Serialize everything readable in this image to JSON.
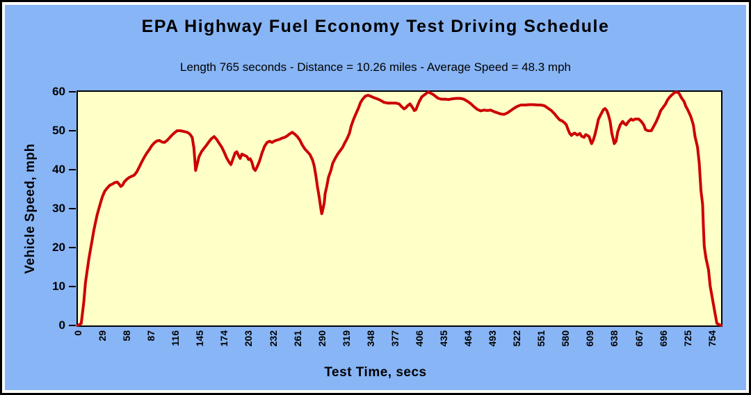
{
  "title": "EPA Highway Fuel Economy Test Driving Schedule",
  "subtitle": "Length 765 seconds - Distance = 10.26 miles - Average Speed = 48.3 mph",
  "colors": {
    "panel_background": "#88b5f5",
    "plot_background": "#ffffc8",
    "line": "#cc0000",
    "text": "#000000",
    "border": "#000000"
  },
  "chart_data": {
    "type": "line",
    "title": "EPA Highway Fuel Economy Test Driving Schedule",
    "subtitle": "Length 765 seconds - Distance = 10.26 miles - Average Speed = 48.3 mph",
    "xlabel": "Test Time, secs",
    "ylabel": "Vehicle Speed, mph",
    "xlim": [
      0,
      765
    ],
    "ylim": [
      0,
      60
    ],
    "grid": false,
    "legend": false,
    "x_ticks": [
      0,
      29,
      58,
      87,
      116,
      145,
      174,
      203,
      232,
      261,
      290,
      319,
      348,
      377,
      406,
      435,
      464,
      493,
      522,
      551,
      580,
      609,
      638,
      667,
      696,
      725,
      754
    ],
    "y_ticks": [
      0,
      10,
      20,
      30,
      40,
      50,
      60
    ],
    "series": [
      {
        "name": "Vehicle Speed",
        "color": "#cc0000",
        "points": [
          [
            0,
            0
          ],
          [
            4,
            0.5
          ],
          [
            7,
            6
          ],
          [
            9,
            11
          ],
          [
            11,
            14
          ],
          [
            13,
            17
          ],
          [
            15,
            19.5
          ],
          [
            17,
            22
          ],
          [
            19,
            24.5
          ],
          [
            21,
            26.5
          ],
          [
            23,
            28.5
          ],
          [
            25,
            30
          ],
          [
            27,
            31.5
          ],
          [
            29,
            33
          ],
          [
            32,
            34.5
          ],
          [
            35,
            35.3
          ],
          [
            38,
            36
          ],
          [
            41,
            36.3
          ],
          [
            44,
            36.7
          ],
          [
            47,
            36.8
          ],
          [
            49,
            36.3
          ],
          [
            51,
            35.7
          ],
          [
            53,
            36
          ],
          [
            55,
            36.8
          ],
          [
            58,
            37.5
          ],
          [
            61,
            38
          ],
          [
            64,
            38.3
          ],
          [
            67,
            38.6
          ],
          [
            70,
            39.4
          ],
          [
            73,
            40.7
          ],
          [
            76,
            42
          ],
          [
            79,
            43.2
          ],
          [
            82,
            44.3
          ],
          [
            85,
            45.2
          ],
          [
            88,
            46.2
          ],
          [
            91,
            46.9
          ],
          [
            94,
            47.4
          ],
          [
            97,
            47.5
          ],
          [
            100,
            47.1
          ],
          [
            103,
            47
          ],
          [
            106,
            47.5
          ],
          [
            109,
            48.2
          ],
          [
            112,
            48.9
          ],
          [
            115,
            49.5
          ],
          [
            118,
            50
          ],
          [
            122,
            50
          ],
          [
            126,
            49.8
          ],
          [
            130,
            49.6
          ],
          [
            133,
            49.2
          ],
          [
            136,
            48.3
          ],
          [
            138,
            45.5
          ],
          [
            140,
            39.8
          ],
          [
            142,
            41.5
          ],
          [
            144,
            43.3
          ],
          [
            147,
            44.6
          ],
          [
            150,
            45.5
          ],
          [
            153,
            46.3
          ],
          [
            156,
            47.2
          ],
          [
            159,
            48
          ],
          [
            162,
            48.5
          ],
          [
            165,
            47.8
          ],
          [
            168,
            46.8
          ],
          [
            171,
            45.8
          ],
          [
            174,
            44.5
          ],
          [
            177,
            43
          ],
          [
            180,
            41.9
          ],
          [
            182,
            41.3
          ],
          [
            184,
            42.5
          ],
          [
            187,
            44.3
          ],
          [
            189,
            44.6
          ],
          [
            191,
            43.7
          ],
          [
            193,
            42.9
          ],
          [
            195,
            44
          ],
          [
            198,
            43.7
          ],
          [
            201,
            43.4
          ],
          [
            203,
            42.6
          ],
          [
            205,
            42.8
          ],
          [
            207,
            41.9
          ],
          [
            209,
            40.3
          ],
          [
            211,
            39.8
          ],
          [
            213,
            40.6
          ],
          [
            216,
            42.2
          ],
          [
            219,
            44.3
          ],
          [
            222,
            46
          ],
          [
            225,
            47
          ],
          [
            228,
            47.3
          ],
          [
            231,
            47
          ],
          [
            234,
            47.4
          ],
          [
            237,
            47.6
          ],
          [
            240,
            47.8
          ],
          [
            243,
            48.1
          ],
          [
            246,
            48.3
          ],
          [
            249,
            48.7
          ],
          [
            252,
            49.2
          ],
          [
            255,
            49.6
          ],
          [
            258,
            49.1
          ],
          [
            261,
            48.5
          ],
          [
            264,
            47.6
          ],
          [
            267,
            46.3
          ],
          [
            270,
            45.3
          ],
          [
            273,
            44.6
          ],
          [
            276,
            43.9
          ],
          [
            279,
            42.5
          ],
          [
            281,
            41
          ],
          [
            283,
            38.5
          ],
          [
            285,
            35.5
          ],
          [
            287,
            33
          ],
          [
            289,
            30
          ],
          [
            290,
            28.7
          ],
          [
            291,
            29.5
          ],
          [
            293,
            31.5
          ],
          [
            294,
            33.8
          ],
          [
            296,
            35.7
          ],
          [
            298,
            38
          ],
          [
            301,
            39.9
          ],
          [
            303,
            41.6
          ],
          [
            306,
            42.9
          ],
          [
            309,
            44
          ],
          [
            312,
            44.9
          ],
          [
            315,
            45.8
          ],
          [
            317,
            46.7
          ],
          [
            320,
            47.9
          ],
          [
            323,
            49.4
          ],
          [
            325,
            51.2
          ],
          [
            328,
            53
          ],
          [
            331,
            54.5
          ],
          [
            334,
            56
          ],
          [
            336,
            57.2
          ],
          [
            339,
            58.2
          ],
          [
            342,
            58.9
          ],
          [
            345,
            59.1
          ],
          [
            348,
            58.9
          ],
          [
            352,
            58.5
          ],
          [
            356,
            58.2
          ],
          [
            360,
            57.8
          ],
          [
            364,
            57.3
          ],
          [
            368,
            57.1
          ],
          [
            373,
            57.1
          ],
          [
            378,
            57.1
          ],
          [
            382,
            56.9
          ],
          [
            385,
            56.2
          ],
          [
            388,
            55.6
          ],
          [
            390,
            55.9
          ],
          [
            392,
            56.4
          ],
          [
            395,
            56.9
          ],
          [
            398,
            56
          ],
          [
            400,
            55.2
          ],
          [
            402,
            55.4
          ],
          [
            404,
            56.5
          ],
          [
            406,
            57.5
          ],
          [
            409,
            58.7
          ],
          [
            412,
            59.2
          ],
          [
            415,
            59.7
          ],
          [
            417,
            60
          ],
          [
            419,
            59.7
          ],
          [
            422,
            59.4
          ],
          [
            425,
            58.9
          ],
          [
            428,
            58.4
          ],
          [
            432,
            58.1
          ],
          [
            437,
            58.1
          ],
          [
            441,
            58
          ],
          [
            445,
            58.2
          ],
          [
            450,
            58.3
          ],
          [
            455,
            58.3
          ],
          [
            459,
            58.1
          ],
          [
            463,
            57.6
          ],
          [
            467,
            57
          ],
          [
            471,
            56.2
          ],
          [
            475,
            55.5
          ],
          [
            479,
            55.1
          ],
          [
            483,
            55.3
          ],
          [
            487,
            55.2
          ],
          [
            491,
            55.3
          ],
          [
            495,
            54.9
          ],
          [
            499,
            54.6
          ],
          [
            503,
            54.3
          ],
          [
            507,
            54.2
          ],
          [
            511,
            54.6
          ],
          [
            515,
            55.2
          ],
          [
            519,
            55.8
          ],
          [
            523,
            56.3
          ],
          [
            527,
            56.6
          ],
          [
            532,
            56.6
          ],
          [
            537,
            56.7
          ],
          [
            542,
            56.7
          ],
          [
            547,
            56.6
          ],
          [
            551,
            56.6
          ],
          [
            555,
            56.4
          ],
          [
            559,
            55.8
          ],
          [
            563,
            55.2
          ],
          [
            567,
            54.3
          ],
          [
            570,
            53.5
          ],
          [
            573,
            52.8
          ],
          [
            576,
            52.5
          ],
          [
            579,
            52
          ],
          [
            581,
            51.5
          ],
          [
            583,
            50.3
          ],
          [
            585,
            49.3
          ],
          [
            587,
            48.8
          ],
          [
            589,
            49.2
          ],
          [
            591,
            49.4
          ],
          [
            594,
            48.9
          ],
          [
            597,
            49.3
          ],
          [
            599,
            48.6
          ],
          [
            602,
            48.3
          ],
          [
            604,
            49
          ],
          [
            606,
            48.8
          ],
          [
            608,
            48.5
          ],
          [
            610,
            47.2
          ],
          [
            611,
            46.7
          ],
          [
            613,
            47.6
          ],
          [
            615,
            49
          ],
          [
            617,
            50.8
          ],
          [
            619,
            52.9
          ],
          [
            622,
            54.2
          ],
          [
            625,
            55.4
          ],
          [
            627,
            55.7
          ],
          [
            629,
            55.2
          ],
          [
            631,
            54
          ],
          [
            633,
            52.4
          ],
          [
            635,
            49.4
          ],
          [
            637,
            47.6
          ],
          [
            638,
            46.7
          ],
          [
            640,
            47.3
          ],
          [
            642,
            49.7
          ],
          [
            645,
            51.5
          ],
          [
            648,
            52.4
          ],
          [
            650,
            51.8
          ],
          [
            652,
            51.5
          ],
          [
            655,
            52.4
          ],
          [
            658,
            53
          ],
          [
            660,
            52.7
          ],
          [
            663,
            53
          ],
          [
            667,
            53
          ],
          [
            670,
            52.4
          ],
          [
            673,
            51.5
          ],
          [
            675,
            50.3
          ],
          [
            678,
            50
          ],
          [
            682,
            50
          ],
          [
            685,
            51.2
          ],
          [
            688,
            52.4
          ],
          [
            691,
            53.9
          ],
          [
            693,
            55.1
          ],
          [
            696,
            56
          ],
          [
            699,
            56.9
          ],
          [
            701,
            57.8
          ],
          [
            704,
            58.7
          ],
          [
            707,
            59.3
          ],
          [
            710,
            59.9
          ],
          [
            713,
            59.9
          ],
          [
            715,
            59.6
          ],
          [
            718,
            58.4
          ],
          [
            721,
            57.5
          ],
          [
            723,
            56.3
          ],
          [
            726,
            55.1
          ],
          [
            729,
            53.6
          ],
          [
            732,
            51.5
          ],
          [
            734,
            48.5
          ],
          [
            737,
            45.8
          ],
          [
            739,
            41.6
          ],
          [
            741,
            34.7
          ],
          [
            743,
            31.1
          ],
          [
            744,
            25.1
          ],
          [
            745,
            20.3
          ],
          [
            747,
            17.3
          ],
          [
            750,
            14.3
          ],
          [
            752,
            10.1
          ],
          [
            755,
            6.5
          ],
          [
            758,
            2.9
          ],
          [
            760,
            0.5
          ],
          [
            765,
            0
          ]
        ]
      }
    ]
  }
}
